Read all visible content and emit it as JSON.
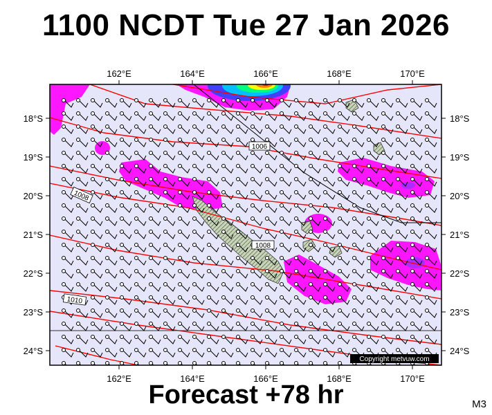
{
  "title": "1100 NCDT Tue 27 Jan 2026",
  "footer": "Forecast +78 hr",
  "model_code": "M3",
  "copyright": "Copyright metvuw.com",
  "lon_labels": [
    "162°E",
    "164°E",
    "166°E",
    "168°E",
    "170°E"
  ],
  "lat_labels": [
    "18°S",
    "19°S",
    "20°S",
    "21°S",
    "22°S",
    "23°S",
    "24°S"
  ],
  "isobar_labels": [
    "1006",
    "1008",
    "1008",
    "1010"
  ],
  "colors": {
    "ocean": "#e6e6fa",
    "rain": "#ff00ff",
    "rain_heavy": "#9b30ff",
    "isobar": "#ff0000",
    "land": "#a8b89a"
  }
}
